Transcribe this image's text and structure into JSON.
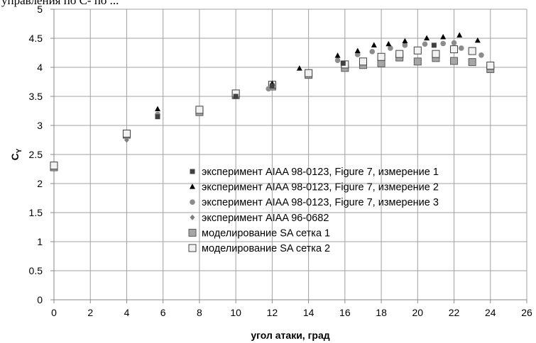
{
  "caption_fragment": "управления по С- по ...",
  "chart_data": {
    "type": "scatter",
    "xlabel": "угол атаки, град",
    "ylabel": "C",
    "ylabel_sub": "Y",
    "xlim": [
      0,
      26
    ],
    "ylim": [
      0,
      5
    ],
    "x_ticks": [
      0,
      2,
      4,
      6,
      8,
      10,
      12,
      14,
      16,
      18,
      20,
      22,
      24,
      26
    ],
    "y_ticks": [
      0,
      0.5,
      1,
      1.5,
      2,
      2.5,
      3,
      3.5,
      4,
      4.5,
      5
    ],
    "y_tick_labels": [
      "0",
      "0.5",
      "1",
      "1.5",
      "2",
      "2.5",
      "3",
      "3.5",
      "4",
      "4.5",
      "5"
    ],
    "grid": true,
    "legend_position": "center-right",
    "series": [
      {
        "name": "эксперимент AIAA 98-0123, Figure 7, измерение 1",
        "marker": "square-small",
        "color": "#404040",
        "points": [
          [
            5.7,
            3.15
          ],
          [
            10.0,
            3.5
          ],
          [
            12.0,
            3.68
          ],
          [
            15.9,
            4.07
          ],
          [
            20.9,
            4.38
          ]
        ]
      },
      {
        "name": "эксперимент AIAA 98-0123, Figure 7, измерение 2",
        "marker": "triangle",
        "color": "#000000",
        "points": [
          [
            5.7,
            3.28
          ],
          [
            12.0,
            3.72
          ],
          [
            13.5,
            3.98
          ],
          [
            15.6,
            4.2
          ],
          [
            16.7,
            4.28
          ],
          [
            17.6,
            4.38
          ],
          [
            18.4,
            4.4
          ],
          [
            19.3,
            4.45
          ],
          [
            20.5,
            4.5
          ],
          [
            21.4,
            4.52
          ],
          [
            22.3,
            4.55
          ],
          [
            23.3,
            4.46
          ]
        ]
      },
      {
        "name": "эксперимент AIAA 98-0123, Figure 7, измерение 3",
        "marker": "circle",
        "color": "#8c8c8c",
        "points": [
          [
            5.7,
            3.19
          ],
          [
            11.8,
            3.63
          ],
          [
            15.6,
            4.12
          ],
          [
            16.7,
            4.22
          ],
          [
            17.5,
            4.27
          ],
          [
            18.5,
            4.33
          ],
          [
            19.3,
            4.38
          ],
          [
            20.4,
            4.4
          ],
          [
            21.4,
            4.41
          ],
          [
            22.0,
            4.42
          ],
          [
            22.4,
            4.33
          ],
          [
            23.5,
            4.21
          ]
        ]
      },
      {
        "name": "эксперимент AIAA 96-0682",
        "marker": "diamond",
        "color": "#7f7f7f",
        "points": [
          [
            4.0,
            2.75
          ],
          [
            5.7,
            3.16
          ],
          [
            10.0,
            3.5
          ]
        ]
      },
      {
        "name": "моделирование SA сетка 1",
        "marker": "square",
        "color": "#a6a6a6",
        "points": [
          [
            0,
            2.28
          ],
          [
            4.0,
            2.84
          ],
          [
            8.0,
            3.23
          ],
          [
            10.0,
            3.52
          ],
          [
            12.0,
            3.67
          ],
          [
            14.0,
            3.87
          ],
          [
            16.0,
            3.99
          ],
          [
            17.0,
            4.04
          ],
          [
            18.0,
            4.07
          ],
          [
            19.0,
            4.17
          ],
          [
            20.0,
            4.1
          ],
          [
            21.0,
            4.16
          ],
          [
            22.0,
            4.11
          ],
          [
            23.0,
            4.09
          ],
          [
            24.0,
            3.97
          ]
        ]
      },
      {
        "name": "моделирование SA сетка 2",
        "marker": "square-open",
        "color": "#f2f2f2",
        "points": [
          [
            0,
            2.31
          ],
          [
            4.0,
            2.86
          ],
          [
            8.0,
            3.27
          ],
          [
            10.0,
            3.55
          ],
          [
            12.0,
            3.7
          ],
          [
            14.0,
            3.9
          ],
          [
            16.0,
            4.05
          ],
          [
            17.0,
            4.1
          ],
          [
            18.0,
            4.18
          ],
          [
            19.0,
            4.23
          ],
          [
            20.0,
            4.29
          ],
          [
            21.0,
            4.23
          ],
          [
            22.0,
            4.31
          ],
          [
            23.0,
            4.28
          ],
          [
            24.0,
            4.03
          ]
        ]
      }
    ]
  }
}
